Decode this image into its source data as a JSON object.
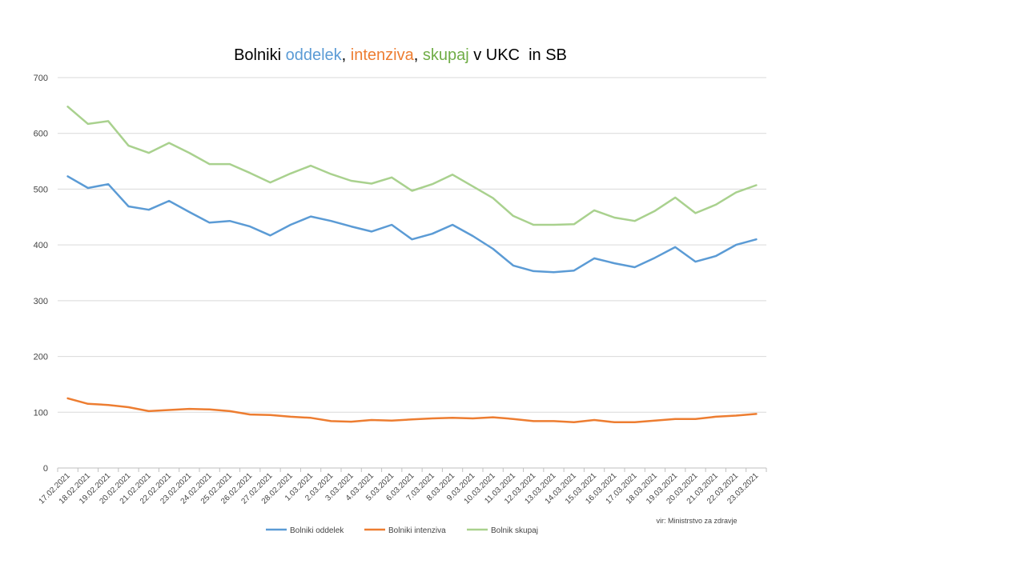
{
  "chart_data": {
    "type": "line",
    "title": {
      "parts": [
        {
          "text": "Bolniki ",
          "color": "#000000"
        },
        {
          "text": "oddelek",
          "color": "#5B9BD5"
        },
        {
          "text": ", ",
          "color": "#000000"
        },
        {
          "text": "intenziva",
          "color": "#ED7D31"
        },
        {
          "text": ", ",
          "color": "#000000"
        },
        {
          "text": "skupaj",
          "color": "#70AD47"
        },
        {
          "text": " v UKC  in SB",
          "color": "#000000"
        }
      ]
    },
    "categories": [
      "17.02.2021",
      "18.02.2021",
      "19.02.2021",
      "20.02.2021",
      "21.02.2021",
      "22.02.2021",
      "23.02.2021",
      "24.02.2021",
      "25.02.2021",
      "26.02.2021",
      "27.02.2021",
      "28.02.2021",
      "1.03.2021",
      "2.03.2021",
      "3.03.2021",
      "4.03.2021",
      "5.03.2021",
      "6.03.2021",
      "7.03.2021",
      "8.03.2021",
      "9.03.2021",
      "10.03.2021",
      "11.03.2021",
      "12.03.2021",
      "13.03.2021",
      "14.03.2021",
      "15.03.2021",
      "16.03.2021",
      "17.03.2021",
      "18.03.2021",
      "19.03.2021",
      "20.03.2021",
      "21.03.2021",
      "22.03.2021",
      "23.03.2021"
    ],
    "series": [
      {
        "name": "Bolniki oddelek",
        "color": "#5B9BD5",
        "values": [
          523,
          502,
          509,
          469,
          463,
          479,
          459,
          440,
          443,
          433,
          417,
          436,
          451,
          443,
          433,
          424,
          436,
          410,
          420,
          436,
          416,
          393,
          363,
          353,
          351,
          354,
          376,
          367,
          360,
          377,
          396,
          370,
          380,
          400,
          410
        ]
      },
      {
        "name": "Bolniki intenziva",
        "color": "#ED7D31",
        "values": [
          125,
          115,
          113,
          109,
          102,
          104,
          106,
          105,
          102,
          96,
          95,
          92,
          90,
          84,
          83,
          86,
          85,
          87,
          89,
          90,
          89,
          91,
          88,
          84,
          84,
          82,
          86,
          82,
          82,
          85,
          88,
          88,
          92,
          94,
          97
        ]
      },
      {
        "name": "Bolnik skupaj",
        "color": "#A9D18E",
        "values": [
          648,
          617,
          622,
          578,
          565,
          583,
          565,
          545,
          545,
          529,
          512,
          528,
          542,
          527,
          515,
          510,
          521,
          497,
          509,
          526,
          505,
          484,
          452,
          436,
          436,
          437,
          462,
          449,
          443,
          461,
          485,
          457,
          472,
          494,
          507
        ]
      }
    ],
    "yticks": [
      0,
      100,
      200,
      300,
      400,
      500,
      600,
      700
    ],
    "ylim": [
      0,
      700
    ],
    "grid": true,
    "legend_position": "bottom-center",
    "source": "vir: Ministrstvo za zdravje"
  }
}
